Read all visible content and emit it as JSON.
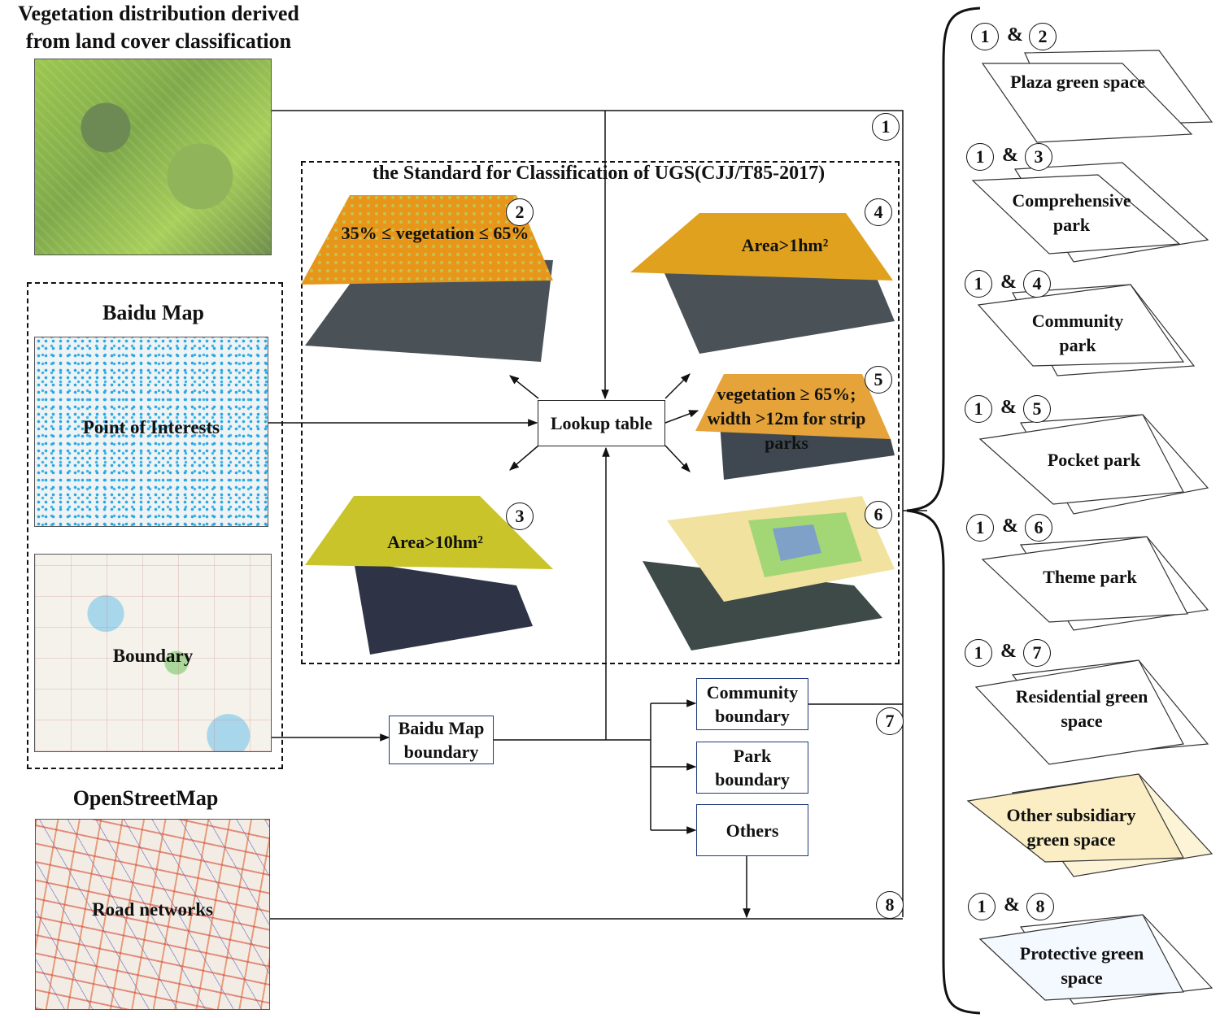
{
  "left": {
    "veg_title": "Vegetation distribution derived from  land cover classification",
    "baidu_title": "Baidu Map",
    "poi_label": "Point of Interests",
    "boundary_label": "Boundary",
    "osm_title": "OpenStreetMap",
    "road_label": "Road networks"
  },
  "standard": {
    "title": "the Standard for Classification of  UGS(CJJ/T85-2017)",
    "p2": "35% ≤ vegetation ≤ 65%",
    "p4": "Area>1hm²",
    "p5": "vegetation ≥ 65%; width >12m for strip parks",
    "p3": "Area>10hm²"
  },
  "center": {
    "lookup": "Lookup table",
    "baidu_boundary": "Baidu Map boundary",
    "community_boundary": "Community boundary",
    "park_boundary": "Park boundary",
    "others": "Others"
  },
  "numbers": [
    "1",
    "2",
    "3",
    "4",
    "5",
    "6",
    "7",
    "8"
  ],
  "amp": "&",
  "outputs": [
    {
      "a": "1",
      "b": "2",
      "label": "Plaza green space"
    },
    {
      "a": "1",
      "b": "3",
      "label": "Comprehensive park"
    },
    {
      "a": "1",
      "b": "4",
      "label": "Community park"
    },
    {
      "a": "1",
      "b": "5",
      "label": "Pocket park"
    },
    {
      "a": "1",
      "b": "6",
      "label": "Theme park"
    },
    {
      "a": "1",
      "b": "7",
      "label": "Residential green space"
    },
    {
      "a": "",
      "b": "",
      "label": "Other subsidiary green space"
    },
    {
      "a": "1",
      "b": "8",
      "label": "Protective green space"
    }
  ]
}
